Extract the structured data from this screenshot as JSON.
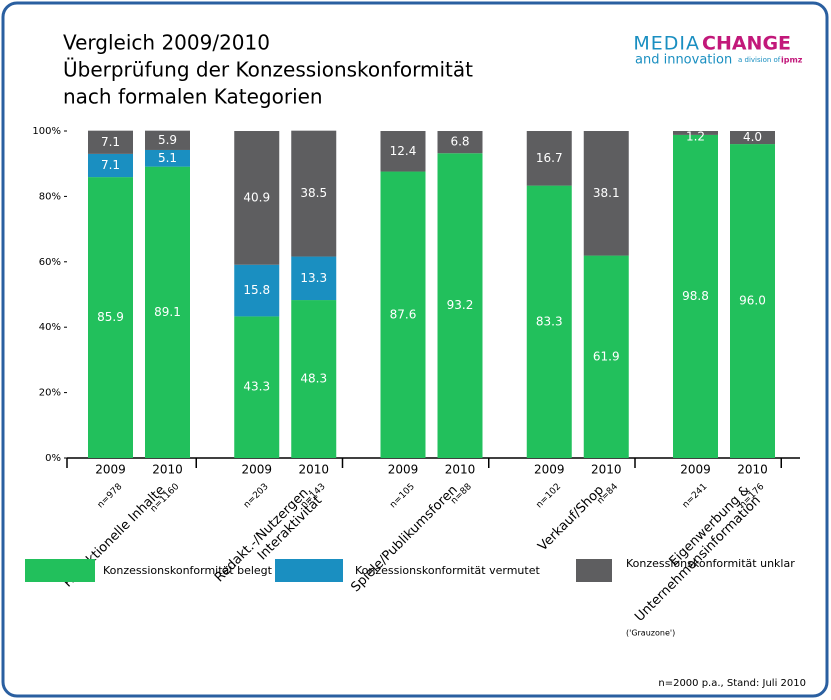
{
  "chart_data": {
    "type": "stacked_bar",
    "title": [
      "Vergleich 2009/2010",
      "Überprüfung der Konzessionskonformität",
      "nach formalen Kategorien"
    ],
    "logo": {
      "media": "MEDIA",
      "change": "CHANGE",
      "innovation": "and innovation",
      "division": "a division of",
      "ipmz": "ipmz"
    },
    "categories": [
      "2009",
      "2010",
      "2009",
      "2010",
      "2009",
      "2010",
      "2009",
      "2010",
      "2009",
      "2010"
    ],
    "n_labels": [
      "n=978",
      "n=1160",
      "n=203",
      "n=143",
      "n=105",
      "n=88",
      "n=102",
      "n=84",
      "n=241",
      "n=176"
    ],
    "groups": [
      [
        "Redaktionelle Inhalte"
      ],
      [
        "Redakt.-/Nutzergen.",
        "Interaktivität"
      ],
      [
        "Spiele/Publikumsforen"
      ],
      [
        "Verkauf/Shop"
      ],
      [
        "Eigenwerbung &",
        "Unternehmensinformation"
      ]
    ],
    "series": [
      {
        "name": "Konzessionskonformität belegt",
        "color": "#22c05c",
        "values": [
          85.9,
          89.1,
          43.3,
          48.3,
          87.6,
          93.2,
          83.3,
          61.9,
          98.8,
          96.0
        ],
        "value_labels": [
          "85.9",
          "89.1",
          "43.3",
          "48.3",
          "87.6",
          "93.2",
          "83.3",
          "61.9",
          "98.8",
          "96.0"
        ]
      },
      {
        "name": "Konzessionskonformität vermutet",
        "color": "#1a8fc1",
        "values": [
          7.1,
          5.1,
          15.8,
          13.3,
          null,
          null,
          null,
          null,
          null,
          null
        ],
        "value_labels": [
          "7.1",
          "5.1",
          "15.8",
          "13.3",
          null,
          null,
          null,
          null,
          null,
          null
        ]
      },
      {
        "name": "Konzessionskonformität unklar",
        "color": "#5e5e60",
        "values": [
          7.1,
          5.9,
          40.9,
          38.5,
          12.4,
          6.8,
          16.7,
          38.1,
          1.2,
          4.0
        ],
        "value_labels": [
          "7.1",
          "5.9",
          "40.9",
          "38.5",
          "12.4",
          "6.8",
          "16.7",
          "38.1",
          "1.2",
          "4.0"
        ]
      }
    ],
    "legend_note": "('Grauzone')",
    "ylim": [
      0,
      100
    ],
    "yticks": [
      {
        "value": 0,
        "label": "0%"
      },
      {
        "value": 20,
        "label": "20%"
      },
      {
        "value": 40,
        "label": "40%"
      },
      {
        "value": 60,
        "label": "60%"
      },
      {
        "value": 80,
        "label": "80%"
      },
      {
        "value": 100,
        "label": "100%"
      }
    ],
    "footnote": "n=2000 p.a., Stand: Juli 2010"
  }
}
